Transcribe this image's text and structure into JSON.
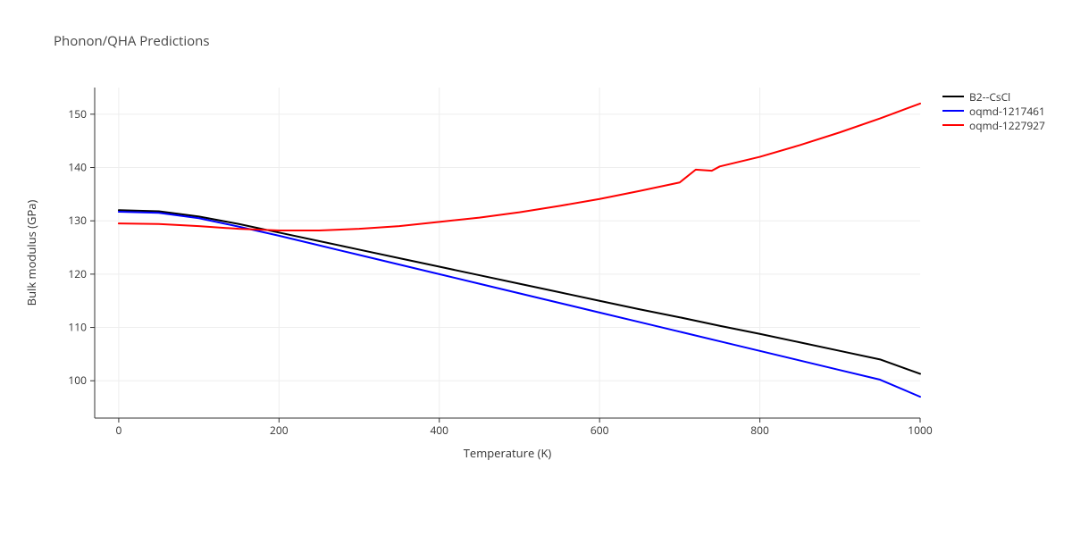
{
  "chart": {
    "type": "line",
    "title": "Phonon/QHA Predictions",
    "title_fontsize": 15,
    "title_color": "#444444",
    "background_color": "#ffffff",
    "plot_background": "#ffffff",
    "grid_color": "#eeeeee",
    "axis_color": "#333333",
    "tick_fontsize": 12,
    "label_fontsize": 13,
    "line_width": 2,
    "x": {
      "label": "Temperature (K)",
      "min": -30,
      "max": 1000,
      "ticks": [
        0,
        200,
        400,
        600,
        800,
        1000
      ],
      "gridlines": [
        0,
        200,
        400,
        600,
        800
      ]
    },
    "y": {
      "label": "Bulk modulus (GPa)",
      "min": 93,
      "max": 155,
      "ticks": [
        100,
        110,
        120,
        130,
        140,
        150
      ]
    },
    "legend": {
      "position": "right",
      "items": [
        {
          "label": "B2--CsCl",
          "color": "#000000"
        },
        {
          "label": "oqmd-1217461",
          "color": "#0000ff"
        },
        {
          "label": "oqmd-1227927",
          "color": "#ff0000"
        }
      ]
    },
    "series": [
      {
        "name": "B2--CsCl",
        "color": "#000000",
        "x": [
          0,
          50,
          100,
          150,
          200,
          250,
          300,
          350,
          400,
          450,
          500,
          550,
          600,
          650,
          700,
          750,
          800,
          850,
          900,
          950,
          1000
        ],
        "y": [
          132.0,
          131.8,
          130.8,
          129.4,
          127.8,
          126.2,
          124.6,
          123.0,
          121.4,
          119.8,
          118.2,
          116.6,
          115.0,
          113.4,
          111.9,
          110.3,
          108.8,
          107.2,
          105.6,
          104.0,
          101.3
        ]
      },
      {
        "name": "oqmd-1217461",
        "color": "#0000ff",
        "x": [
          0,
          50,
          100,
          150,
          200,
          250,
          300,
          350,
          400,
          450,
          500,
          550,
          600,
          650,
          700,
          750,
          800,
          850,
          900,
          950,
          1000
        ],
        "y": [
          131.7,
          131.5,
          130.5,
          128.9,
          127.2,
          125.4,
          123.6,
          121.8,
          120.0,
          118.2,
          116.4,
          114.6,
          112.8,
          111.0,
          109.2,
          107.4,
          105.6,
          103.8,
          102.0,
          100.2,
          97.0
        ]
      },
      {
        "name": "oqmd-1227927",
        "color": "#ff0000",
        "x": [
          0,
          50,
          100,
          150,
          200,
          250,
          300,
          350,
          400,
          450,
          500,
          550,
          600,
          650,
          700,
          720,
          740,
          750,
          800,
          850,
          900,
          950,
          1000
        ],
        "y": [
          129.5,
          129.4,
          129.0,
          128.5,
          128.2,
          128.2,
          128.5,
          129.0,
          129.8,
          130.6,
          131.6,
          132.8,
          134.1,
          135.6,
          137.2,
          139.6,
          139.4,
          140.2,
          142.0,
          144.2,
          146.6,
          149.2,
          152.0
        ]
      }
    ]
  }
}
